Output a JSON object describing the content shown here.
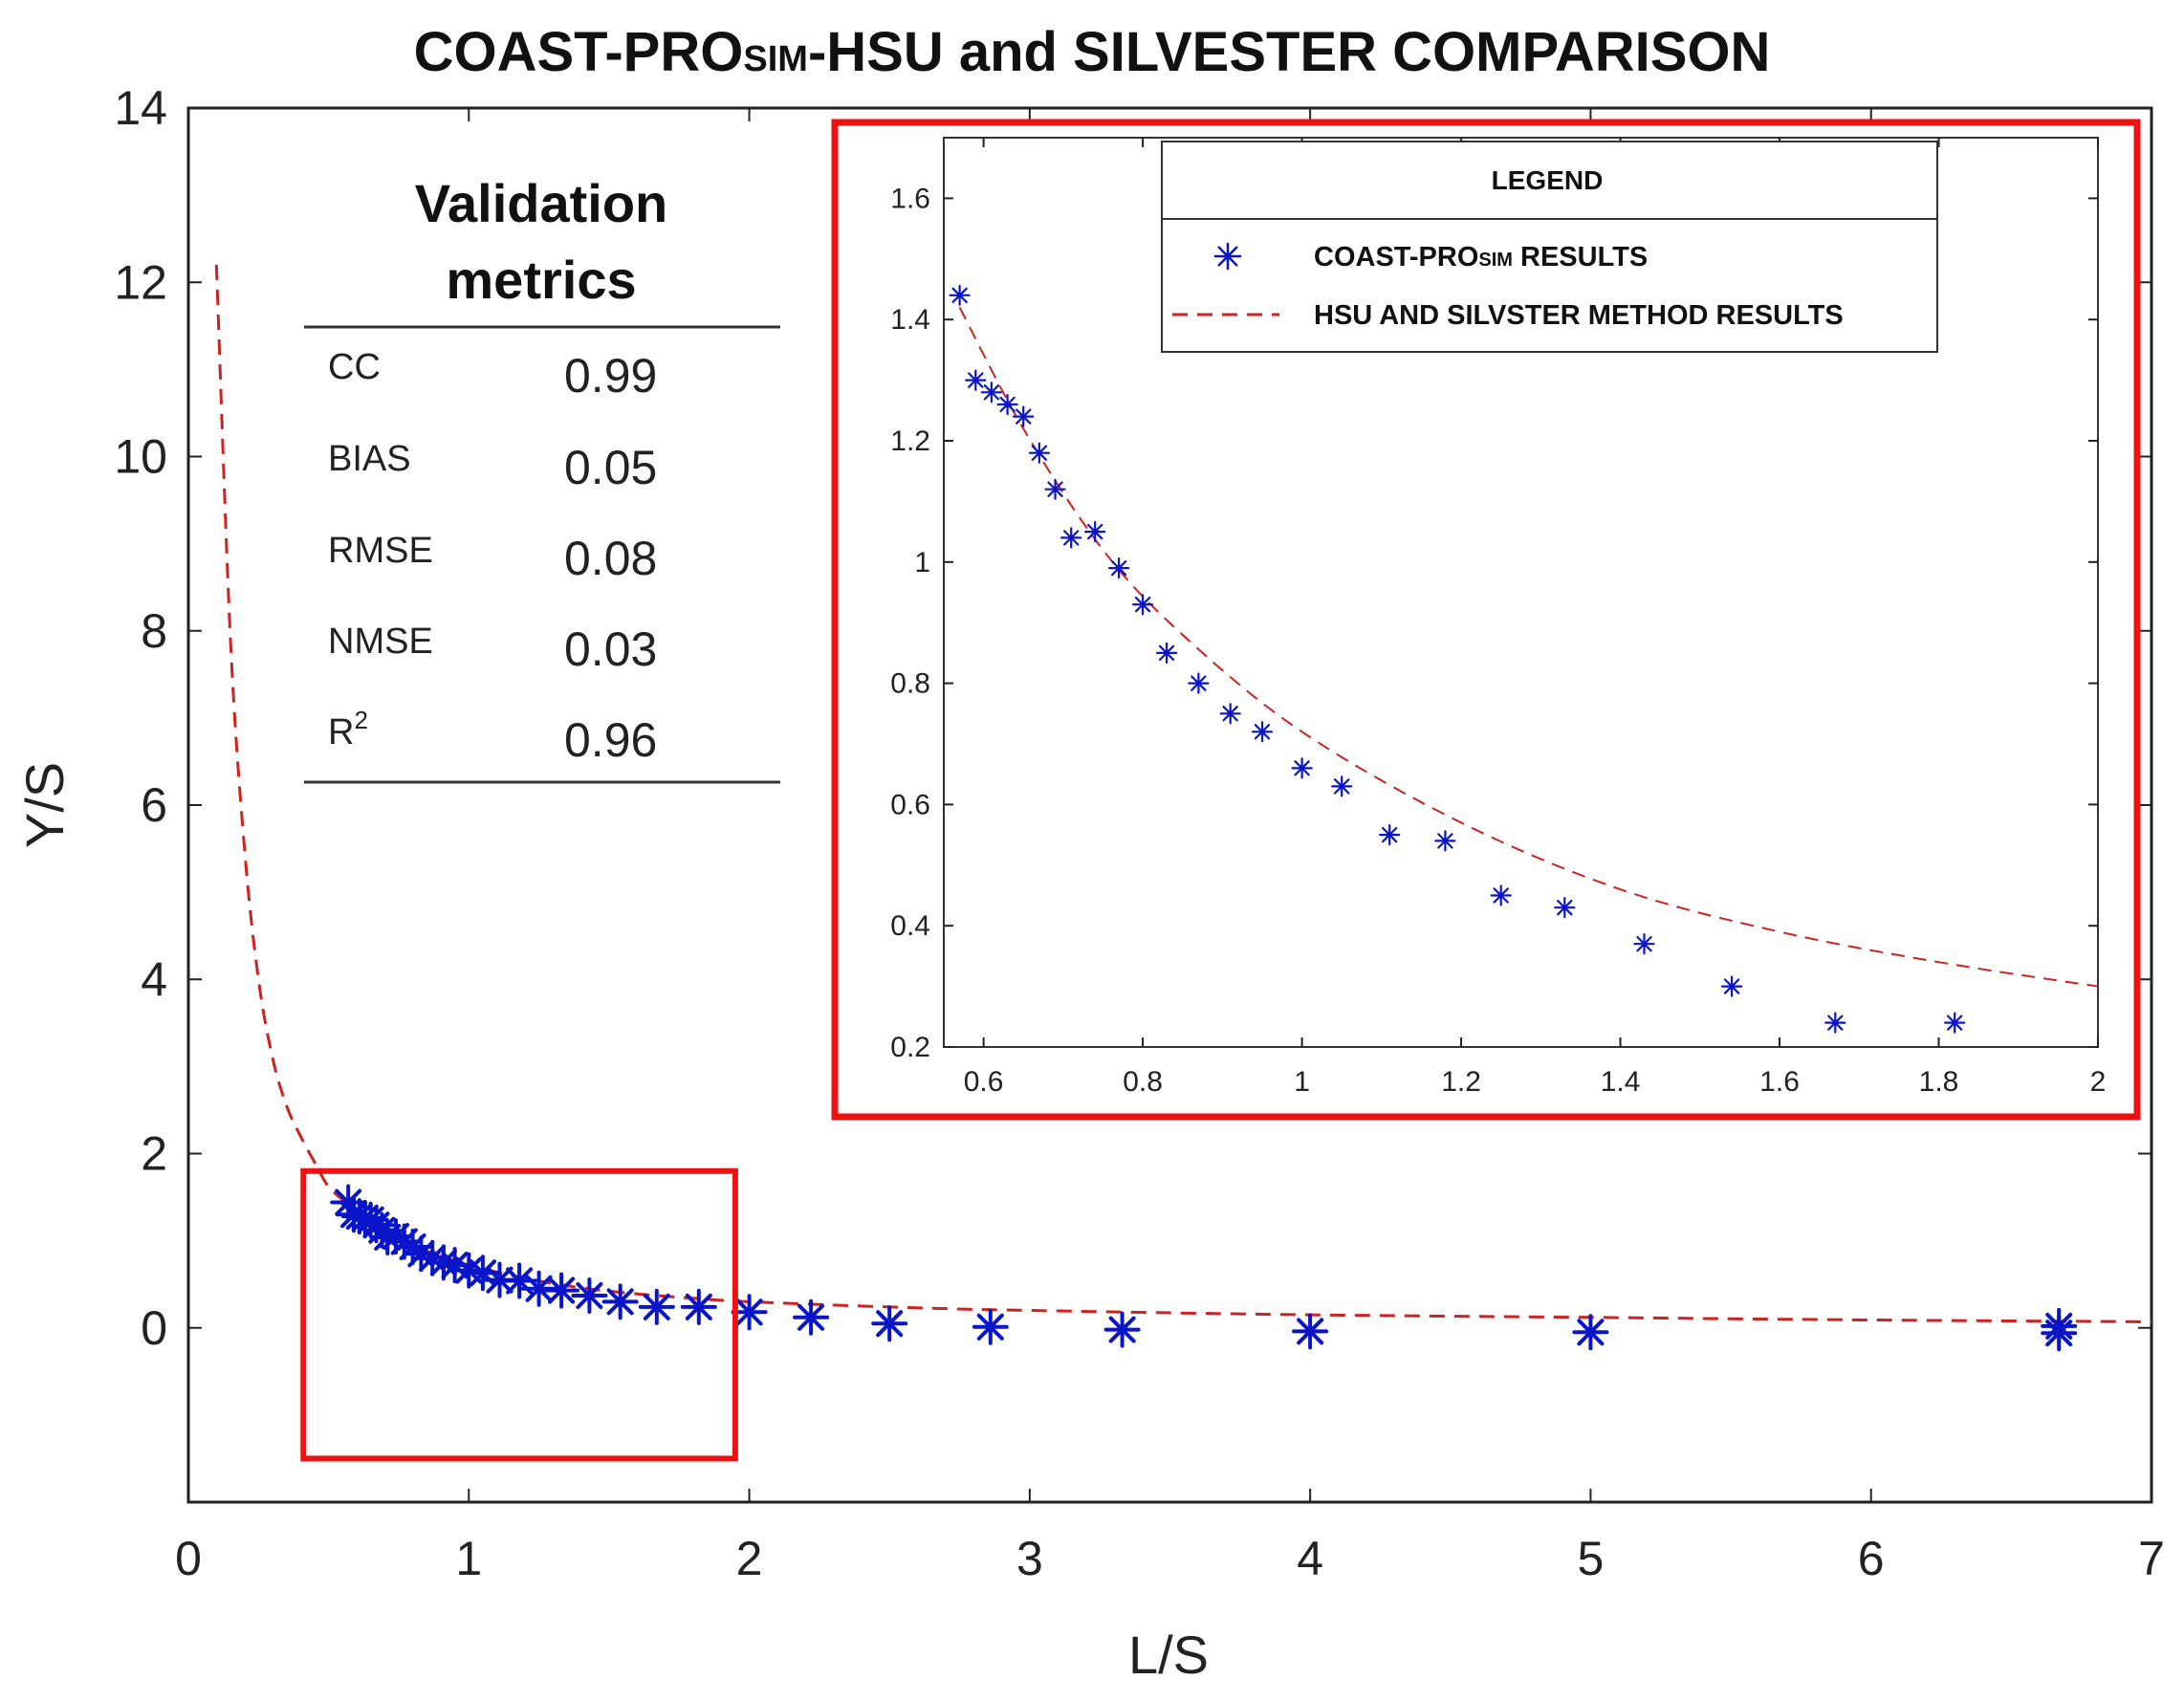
{
  "chart_data": [
    {
      "type": "scatter",
      "title_parts": [
        "COAST-PRO",
        "SIM",
        "-HSU and SILVESTER COMPARISON"
      ],
      "xlabel": "L/S",
      "ylabel": "Y/S",
      "xlim": [
        0,
        7
      ],
      "ylim": [
        -2,
        14
      ],
      "x_ticks": [
        "0",
        "1",
        "2",
        "3",
        "4",
        "5",
        "6",
        "7"
      ],
      "y_ticks": [
        "0",
        "2",
        "4",
        "6",
        "8",
        "10",
        "12",
        "14"
      ],
      "series": [
        {
          "name": "COAST-PROSIM RESULTS",
          "marker": "asterisk",
          "color": "#0a14c8",
          "points": [
            [
              0.57,
              1.44
            ],
            [
              0.59,
              1.3
            ],
            [
              0.61,
              1.28
            ],
            [
              0.63,
              1.26
            ],
            [
              0.65,
              1.24
            ],
            [
              0.67,
              1.18
            ],
            [
              0.69,
              1.12
            ],
            [
              0.71,
              1.04
            ],
            [
              0.74,
              1.05
            ],
            [
              0.77,
              0.99
            ],
            [
              0.8,
              0.93
            ],
            [
              0.83,
              0.85
            ],
            [
              0.87,
              0.8
            ],
            [
              0.91,
              0.75
            ],
            [
              0.95,
              0.72
            ],
            [
              1.0,
              0.66
            ],
            [
              1.05,
              0.63
            ],
            [
              1.11,
              0.55
            ],
            [
              1.18,
              0.54
            ],
            [
              1.25,
              0.45
            ],
            [
              1.33,
              0.43
            ],
            [
              1.43,
              0.37
            ],
            [
              1.54,
              0.3
            ],
            [
              1.67,
              0.24
            ],
            [
              1.82,
              0.24
            ],
            [
              2.0,
              0.18
            ],
            [
              2.22,
              0.12
            ],
            [
              2.5,
              0.05
            ],
            [
              2.86,
              0.01
            ],
            [
              3.33,
              -0.02
            ],
            [
              4.0,
              -0.04
            ],
            [
              5.0,
              -0.05
            ],
            [
              6.67,
              -0.06
            ],
            [
              6.67,
              0.02
            ]
          ]
        },
        {
          "name": "HSU AND SILVSTER METHOD RESULTS",
          "style": "dashed",
          "color": "#cc2222",
          "formula_note": "fitted curve",
          "points": [
            [
              0.1,
              12.2
            ],
            [
              0.15,
              7.9
            ],
            [
              0.2,
              5.5
            ],
            [
              0.25,
              4.0
            ],
            [
              0.3,
              3.1
            ],
            [
              0.35,
              2.55
            ],
            [
              0.4,
              2.2
            ],
            [
              0.45,
              1.9
            ],
            [
              0.5,
              1.62
            ],
            [
              0.57,
              1.42
            ],
            [
              0.65,
              1.22
            ],
            [
              0.75,
              1.02
            ],
            [
              0.85,
              0.88
            ],
            [
              1.0,
              0.72
            ],
            [
              1.2,
              0.57
            ],
            [
              1.4,
              0.46
            ],
            [
              1.6,
              0.39
            ],
            [
              1.8,
              0.34
            ],
            [
              2.0,
              0.3
            ],
            [
              2.5,
              0.24
            ],
            [
              3.0,
              0.2
            ],
            [
              4.0,
              0.15
            ],
            [
              5.0,
              0.12
            ],
            [
              6.0,
              0.09
            ],
            [
              7.0,
              0.07
            ]
          ]
        }
      ],
      "zoom_box_region": {
        "x": [
          0.41,
          1.95
        ],
        "y": [
          -1.5,
          1.8
        ]
      }
    },
    {
      "type": "scatter",
      "role": "inset",
      "xlim": [
        0.55,
        2.0
      ],
      "ylim": [
        0.2,
        1.7
      ],
      "x_ticks": [
        "0.6",
        "0.8",
        "1",
        "1.2",
        "1.4",
        "1.6",
        "1.8",
        "2"
      ],
      "y_ticks": [
        "0.2",
        "0.4",
        "0.6",
        "0.8",
        "1",
        "1.2",
        "1.4",
        "1.6"
      ],
      "legend_title": "LEGEND",
      "legend_position": "top-right",
      "legend": [
        {
          "parts": [
            "COAST-PRO",
            "SIM",
            " RESULTS"
          ],
          "marker": "asterisk"
        },
        {
          "parts": [
            "HSU AND SILVSTER METHOD RESULTS"
          ],
          "marker": "dashed-line"
        }
      ],
      "series_ref": "main"
    }
  ],
  "metrics": {
    "heading_line1": "Validation",
    "heading_line2": "metrics",
    "rows": [
      {
        "name": "CC",
        "value": "0.99"
      },
      {
        "name": "BIAS",
        "value": "0.05"
      },
      {
        "name": "RMSE",
        "value": "0.08"
      },
      {
        "name": "NMSE",
        "value": "0.03"
      },
      {
        "name": "R",
        "sup": "2",
        "value": "0.96"
      }
    ]
  },
  "colors": {
    "marker": "#0a14c8",
    "curve": "#cc2222",
    "highlight": "#ee1111",
    "axis": "#222222"
  }
}
